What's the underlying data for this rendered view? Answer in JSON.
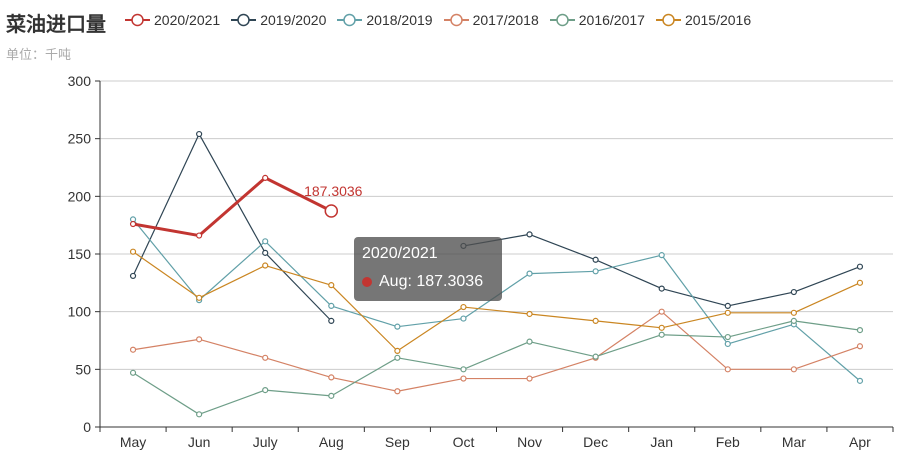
{
  "chart_data": {
    "type": "line",
    "title": "菜油进口量",
    "subtitle": "单位：千吨",
    "categories": [
      "May",
      "Jun",
      "July",
      "Aug",
      "Sep",
      "Oct",
      "Nov",
      "Dec",
      "Jan",
      "Feb",
      "Mar",
      "Apr"
    ],
    "ylim": [
      0,
      300
    ],
    "yticks": [
      0,
      50,
      100,
      150,
      200,
      250,
      300
    ],
    "grid": true,
    "legend_position": "top",
    "series": [
      {
        "name": "2020/2021",
        "color": "#c23531",
        "emphasis": true,
        "values": [
          176,
          166,
          216,
          187.3036,
          null,
          null,
          null,
          null,
          null,
          null,
          null,
          null
        ]
      },
      {
        "name": "2019/2020",
        "color": "#2f4554",
        "values": [
          131,
          254,
          151,
          92,
          null,
          157,
          167,
          145,
          120,
          105,
          117,
          139
        ]
      },
      {
        "name": "2018/2019",
        "color": "#61a0a8",
        "values": [
          180,
          110,
          161,
          105,
          87,
          94,
          133,
          135,
          149,
          72,
          89,
          40
        ]
      },
      {
        "name": "2017/2018",
        "color": "#d48265",
        "values": [
          67,
          76,
          60,
          43,
          31,
          42,
          42,
          60,
          100,
          50,
          50,
          70
        ]
      },
      {
        "name": "2016/2017",
        "color": "#6e9e88",
        "values": [
          47,
          11,
          32,
          27,
          60,
          50,
          74,
          61,
          80,
          78,
          92,
          84
        ]
      },
      {
        "name": "2015/2016",
        "color": "#ca8622",
        "values": [
          152,
          112,
          140,
          123,
          66,
          104,
          98,
          92,
          86,
          99,
          99,
          125
        ]
      }
    ],
    "annotation": {
      "series": "2020/2021",
      "category": "Aug",
      "label": "187.3036"
    },
    "tooltip": {
      "title": "2020/2021",
      "row": "Aug: 187.3036",
      "color": "#c23531"
    }
  }
}
